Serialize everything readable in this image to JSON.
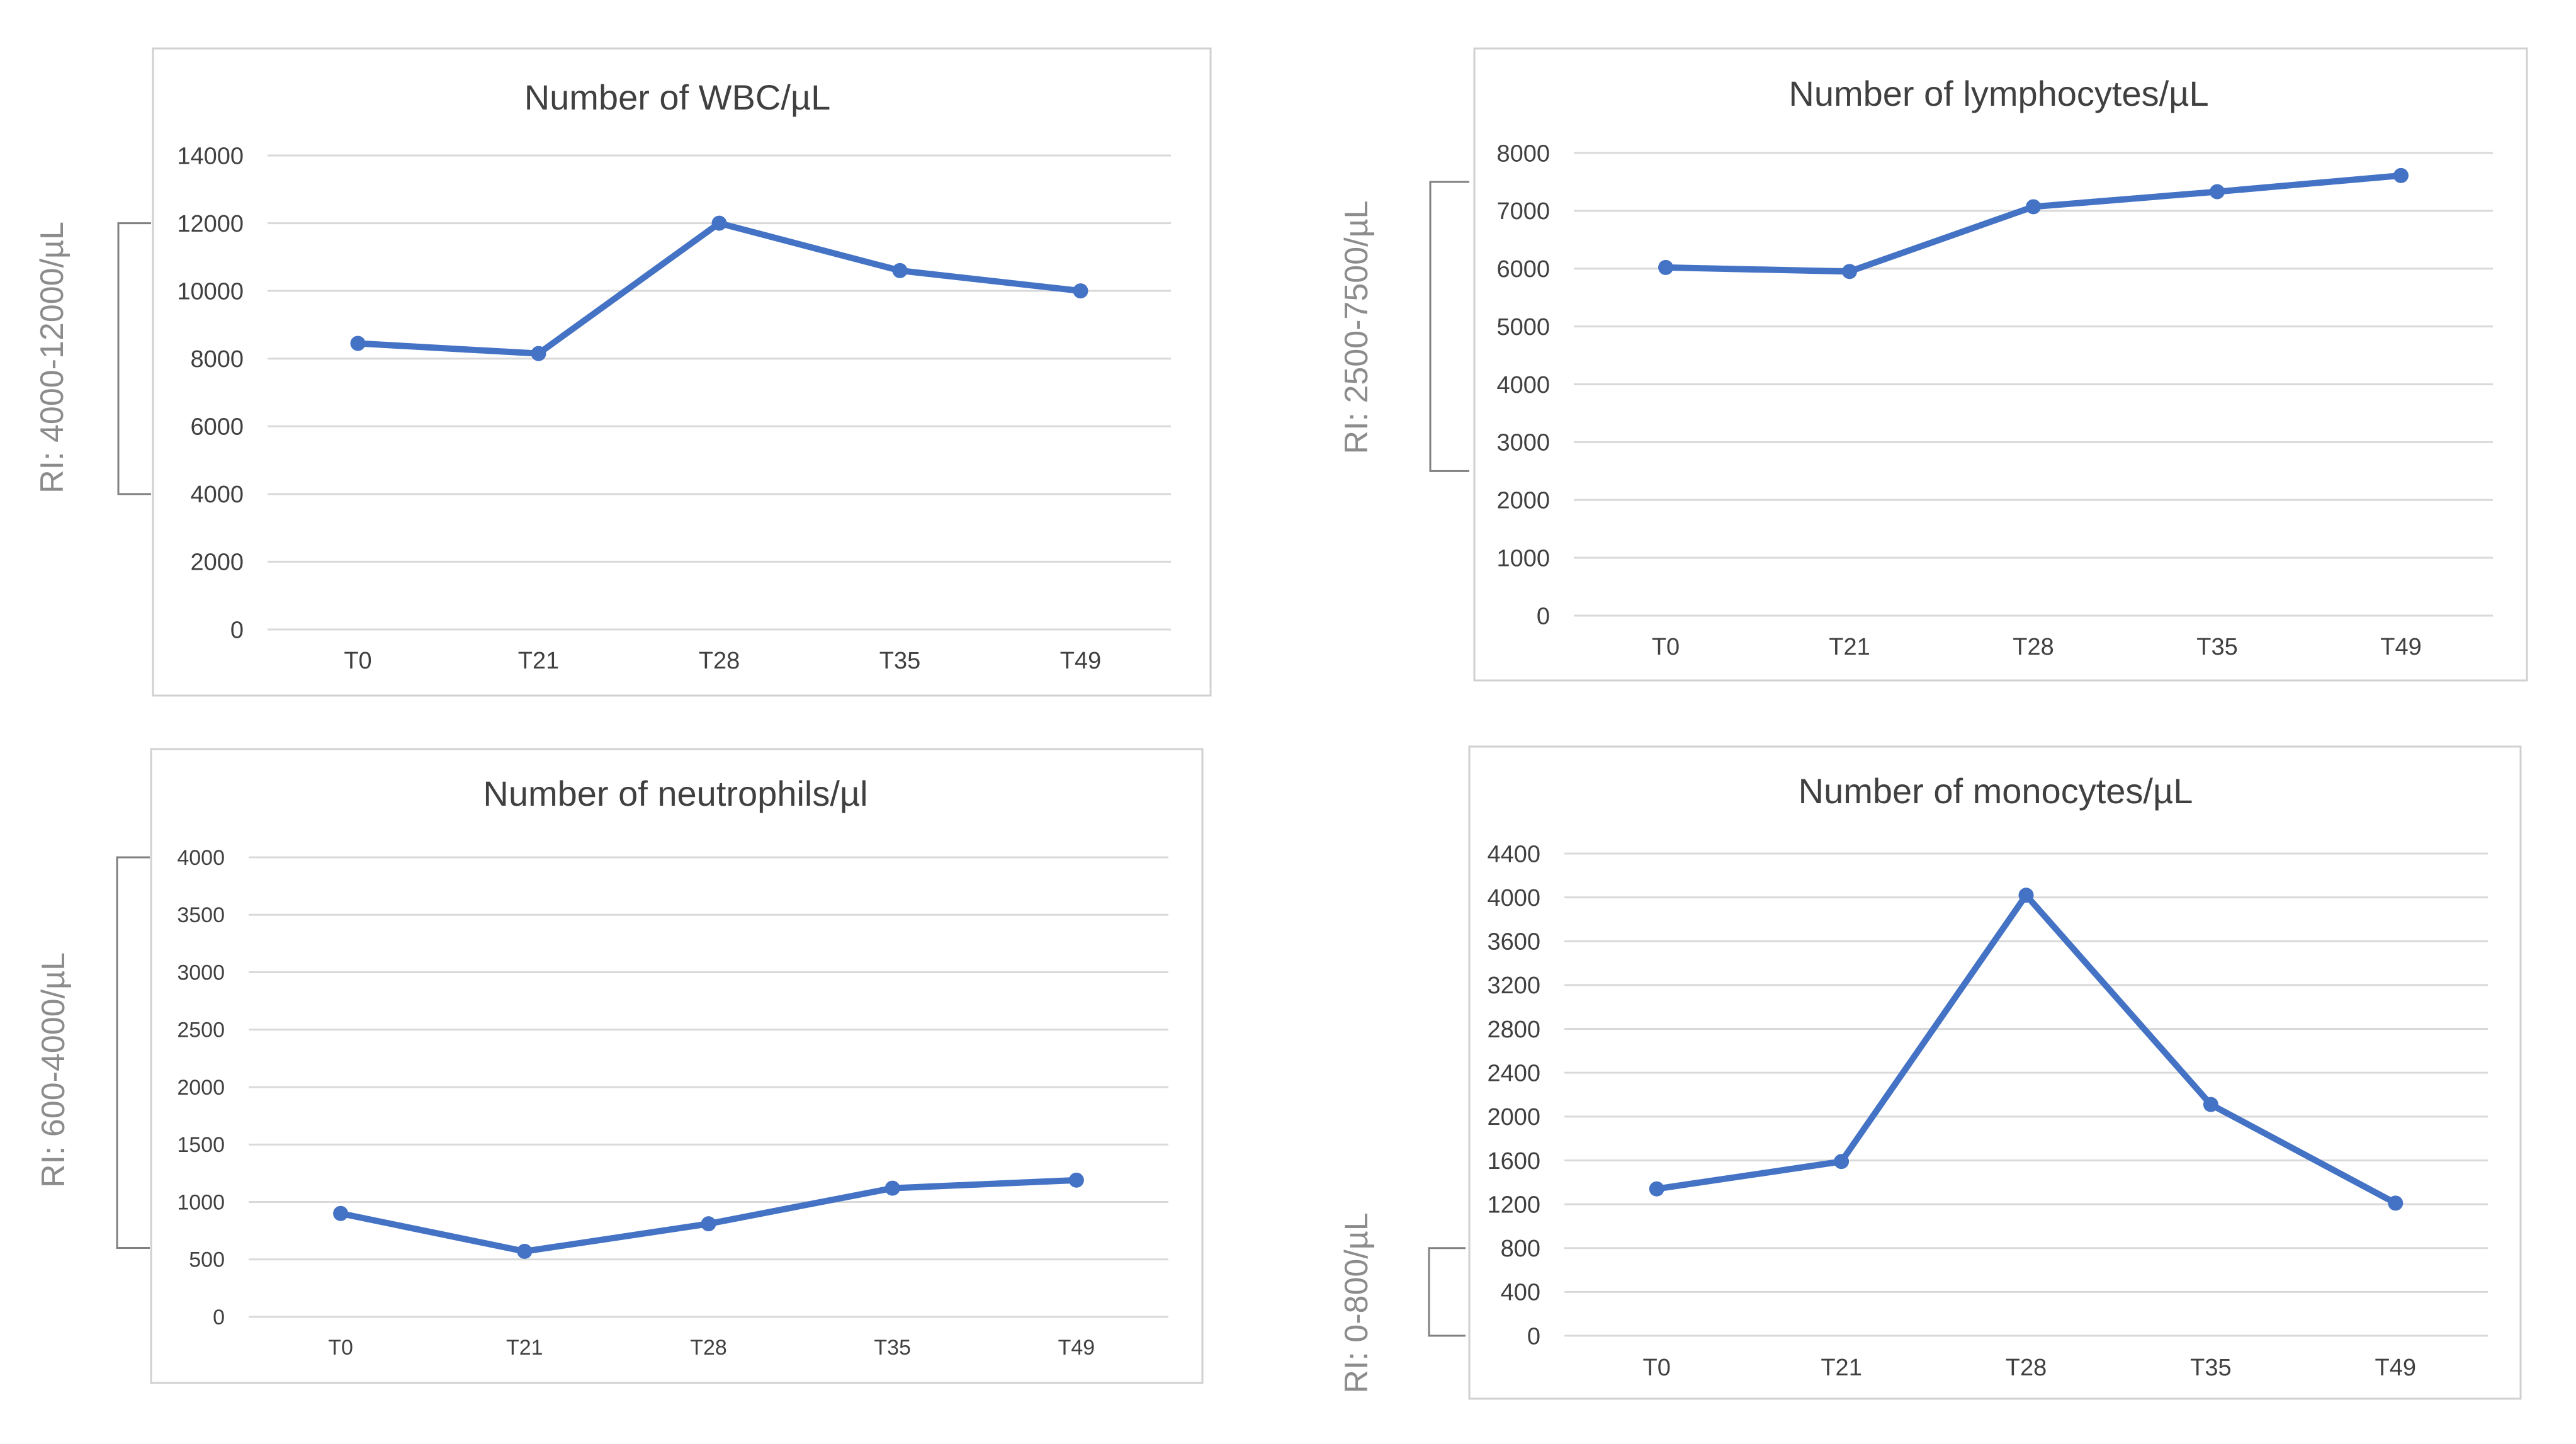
{
  "colors": {
    "line": "#4472C4",
    "grid": "#d9d9d9",
    "frame": "#d0d0d0",
    "text": "#404040",
    "title": "#404040",
    "side_label": "#8c8c8c",
    "bracket": "#808080"
  },
  "chart_data": [
    {
      "id": "wbc",
      "type": "line",
      "title": "Number of WBC/µL",
      "side_label": "RI: 4000-12000/µL",
      "categories": [
        "T0",
        "T21",
        "T28",
        "T35",
        "T49"
      ],
      "series": [
        {
          "name": "WBC",
          "values": [
            8450,
            8150,
            12000,
            10600,
            10000
          ]
        }
      ],
      "yticks": [
        "0",
        "2000",
        "4000",
        "6000",
        "8000",
        "10000",
        "12000",
        "14000"
      ],
      "ylim": [
        0,
        14000
      ],
      "reference_range": [
        4000,
        12000
      ],
      "grid": true,
      "legend": "none"
    },
    {
      "id": "lymphocytes",
      "type": "line",
      "title": "Number of lymphocytes/µL",
      "side_label": "RI: 2500-7500/µL",
      "categories": [
        "T0",
        "T21",
        "T28",
        "T35",
        "T49"
      ],
      "series": [
        {
          "name": "Lymphocytes",
          "values": [
            6020,
            5950,
            7070,
            7330,
            7610
          ]
        }
      ],
      "yticks": [
        "0",
        "1000",
        "2000",
        "3000",
        "4000",
        "5000",
        "6000",
        "7000",
        "8000"
      ],
      "ylim": [
        0,
        8000
      ],
      "reference_range": [
        2500,
        7500
      ],
      "grid": true,
      "legend": "none"
    },
    {
      "id": "neutrophils",
      "type": "line",
      "title": "Number of neutrophils/µl",
      "side_label": "RI: 600-4000/µL",
      "categories": [
        "T0",
        "T21",
        "T28",
        "T35",
        "T49"
      ],
      "series": [
        {
          "name": "Neutrophils",
          "values": [
            900,
            570,
            810,
            1120,
            1190
          ]
        }
      ],
      "yticks": [
        "0",
        "500",
        "1000",
        "1500",
        "2000",
        "2500",
        "3000",
        "3500",
        "4000"
      ],
      "ylim": [
        0,
        4000
      ],
      "reference_range": [
        600,
        4000
      ],
      "grid": true,
      "legend": "none"
    },
    {
      "id": "monocytes",
      "type": "line",
      "title": "Number of monocytes/µL",
      "side_label": "RI: 0-800/µL",
      "categories": [
        "T0",
        "T21",
        "T28",
        "T35",
        "T49"
      ],
      "series": [
        {
          "name": "Monocytes",
          "values": [
            1340,
            1590,
            4020,
            2110,
            1210
          ]
        }
      ],
      "yticks": [
        "0",
        "400",
        "800",
        "1200",
        "1600",
        "2000",
        "2400",
        "2800",
        "3200",
        "3600",
        "4000",
        "4400"
      ],
      "ylim": [
        0,
        4400
      ],
      "reference_range": [
        0,
        800
      ],
      "grid": true,
      "legend": "none"
    }
  ]
}
